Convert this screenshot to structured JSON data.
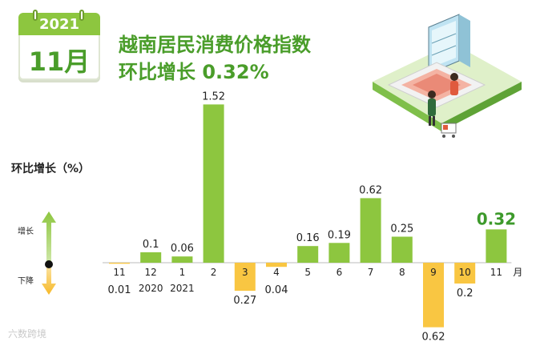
{
  "calendar": {
    "year": "2021",
    "month": "11月"
  },
  "title_line1": "越南居民消费价格指数",
  "title_line2": "环比增长 0.32%",
  "chart_data": {
    "type": "bar",
    "ylabel": "环比增长（%）",
    "month_unit": "月",
    "legend": {
      "up": "增长",
      "down": "下降"
    },
    "colors": {
      "up": "#8dc63f",
      "down": "#f9c642",
      "highlight_text": "#3d9a2b",
      "axis": "#bbbbbb"
    },
    "categories": [
      {
        "month": "11",
        "year": "",
        "value": -0.01,
        "label": "0.01"
      },
      {
        "month": "12",
        "year": "2020",
        "value": 0.1,
        "label": "0.1"
      },
      {
        "month": "1",
        "year": "2021",
        "value": 0.06,
        "label": "0.06"
      },
      {
        "month": "2",
        "year": "",
        "value": 1.52,
        "label": "1.52"
      },
      {
        "month": "3",
        "year": "",
        "value": -0.27,
        "label": "0.27"
      },
      {
        "month": "4",
        "year": "",
        "value": -0.04,
        "label": "0.04"
      },
      {
        "month": "5",
        "year": "",
        "value": 0.16,
        "label": "0.16"
      },
      {
        "month": "6",
        "year": "",
        "value": 0.19,
        "label": "0.19"
      },
      {
        "month": "7",
        "year": "",
        "value": 0.62,
        "label": "0.62"
      },
      {
        "month": "8",
        "year": "",
        "value": 0.25,
        "label": "0.25"
      },
      {
        "month": "9",
        "year": "",
        "value": -0.62,
        "label": "0.62"
      },
      {
        "month": "10",
        "year": "",
        "value": -0.2,
        "label": "0.2"
      },
      {
        "month": "11",
        "year": "",
        "value": 0.32,
        "label": "0.32"
      }
    ],
    "highlight_index": 12
  },
  "watermark": "六数跨境"
}
